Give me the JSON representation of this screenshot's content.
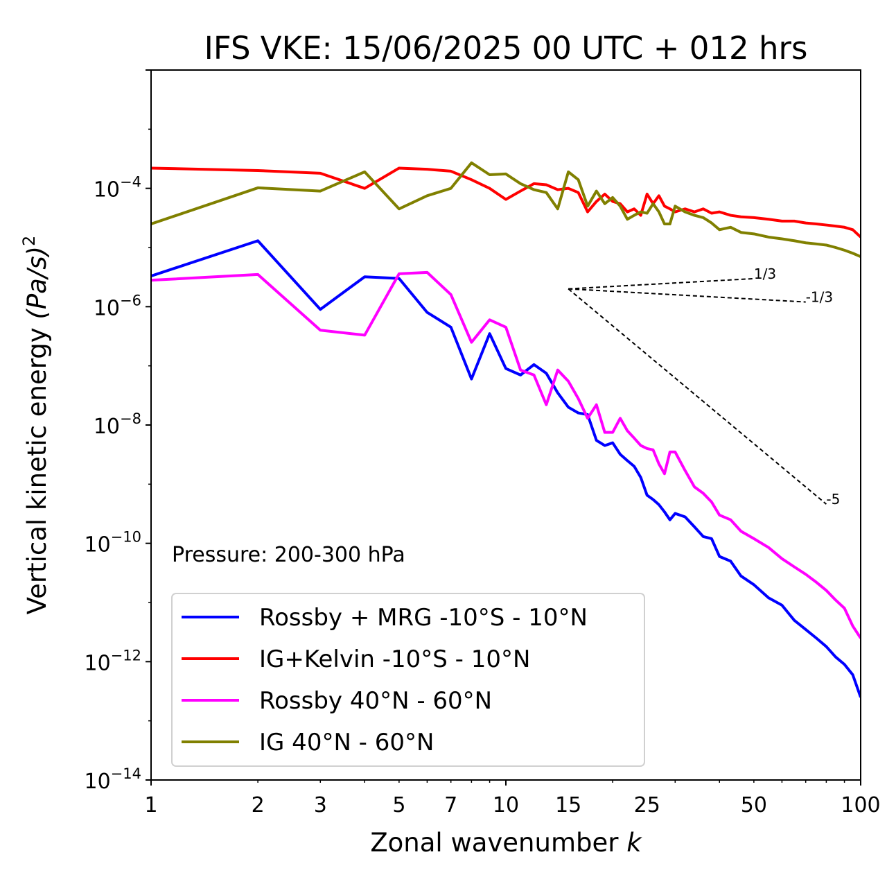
{
  "chart_data": {
    "type": "line",
    "title": "IFS VKE: 15/06/2025 00 UTC + 012 hrs",
    "xlabel": "Zonal wavenumber",
    "xlabel_var": "k",
    "ylabel": "Vertical kinetic energy",
    "ylabel_units": "(Pa/s)",
    "ylabel_units_exp": "2",
    "x_scale": "log",
    "y_scale": "log",
    "xlim": [
      1,
      100
    ],
    "ylim": [
      1e-14,
      0.01
    ],
    "grid": false,
    "legend_position": "lower-left",
    "annotation": "Pressure: 200-300 hPa",
    "x_ticks": [
      {
        "value": 1,
        "label": "1"
      },
      {
        "value": 2,
        "label": "2"
      },
      {
        "value": 3,
        "label": "3"
      },
      {
        "value": 5,
        "label": "5"
      },
      {
        "value": 7,
        "label": "7"
      },
      {
        "value": 10,
        "label": "10"
      },
      {
        "value": 15,
        "label": "15"
      },
      {
        "value": 25,
        "label": "25"
      },
      {
        "value": 50,
        "label": "50"
      },
      {
        "value": 100,
        "label": "100"
      }
    ],
    "y_ticks": [
      {
        "value": 0.0001,
        "base": "10",
        "exp": "−4"
      },
      {
        "value": 1e-06,
        "base": "10",
        "exp": "−6"
      },
      {
        "value": 1e-08,
        "base": "10",
        "exp": "−8"
      },
      {
        "value": 1e-10,
        "base": "10",
        "exp": "−10"
      },
      {
        "value": 1e-12,
        "base": "10",
        "exp": "−12"
      },
      {
        "value": 1e-14,
        "base": "10",
        "exp": "−14"
      }
    ],
    "reference_slopes": [
      {
        "label": "1/3",
        "x": [
          15,
          50
        ],
        "y": [
          2e-06,
          2.98e-06
        ]
      },
      {
        "label": "-1/3",
        "x": [
          15,
          70
        ],
        "y": [
          2e-06,
          1.2e-06
        ]
      },
      {
        "label": "-5",
        "x": [
          15,
          80
        ],
        "y": [
          2e-06,
          4.6e-10
        ]
      }
    ],
    "series": [
      {
        "name": "Rossby + MRG -10°S - 10°N",
        "color": "#0000ff",
        "x": [
          1,
          2,
          3,
          4,
          5,
          6,
          7,
          8,
          9,
          10,
          11,
          12,
          13,
          14,
          15,
          16,
          17,
          18,
          19,
          20,
          21,
          22,
          23,
          24,
          25,
          26,
          27,
          28,
          29,
          30,
          32,
          34,
          36,
          38,
          40,
          43,
          46,
          50,
          55,
          60,
          65,
          70,
          75,
          80,
          85,
          90,
          95,
          100
        ],
        "y": [
          3.3e-06,
          1.3e-05,
          9e-07,
          3.2e-06,
          3e-06,
          8e-07,
          4.5e-07,
          6e-08,
          3.5e-07,
          9e-08,
          7e-08,
          1.05e-07,
          7.5e-08,
          3.5e-08,
          2e-08,
          1.6e-08,
          1.5e-08,
          5.5e-09,
          4.5e-09,
          5e-09,
          3.2e-09,
          2.5e-09,
          2e-09,
          1.3e-09,
          6.5e-10,
          5.5e-10,
          4.5e-10,
          3.4e-10,
          2.5e-10,
          3.2e-10,
          2.8e-10,
          1.9e-10,
          1.3e-10,
          1.2e-10,
          6e-11,
          5e-11,
          2.8e-11,
          2e-11,
          1.2e-11,
          9e-12,
          5e-12,
          3.5e-12,
          2.5e-12,
          1.8e-12,
          1.2e-12,
          9e-13,
          6e-13,
          2.5e-13
        ]
      },
      {
        "name": "IG+Kelvin -10°S - 10°N",
        "color": "#ff0000",
        "x": [
          1,
          2,
          3,
          4,
          5,
          6,
          7,
          8,
          9,
          10,
          11,
          12,
          13,
          14,
          15,
          16,
          17,
          18,
          19,
          20,
          21,
          22,
          23,
          24,
          25,
          26,
          27,
          28,
          29,
          30,
          32,
          34,
          36,
          38,
          40,
          43,
          46,
          50,
          55,
          60,
          65,
          70,
          75,
          80,
          85,
          90,
          95,
          100
        ],
        "y": [
          0.00022,
          0.0002,
          0.00018,
          0.0001,
          0.00022,
          0.00021,
          0.000195,
          0.00014,
          0.0001,
          6.5e-05,
          9e-05,
          0.00012,
          0.000115,
          9.5e-05,
          0.0001,
          8.5e-05,
          4e-05,
          6e-05,
          8e-05,
          6e-05,
          5.5e-05,
          4e-05,
          4.5e-05,
          3.5e-05,
          8e-05,
          5.5e-05,
          7.5e-05,
          5e-05,
          4.5e-05,
          4e-05,
          4.5e-05,
          4e-05,
          4.5e-05,
          3.8e-05,
          4e-05,
          3.5e-05,
          3.3e-05,
          3.2e-05,
          3e-05,
          2.8e-05,
          2.8e-05,
          2.6e-05,
          2.5e-05,
          2.4e-05,
          2.3e-05,
          2.2e-05,
          2e-05,
          1.5e-05
        ]
      },
      {
        "name": "Rossby 40°N - 60°N",
        "color": "#ff00ff",
        "x": [
          1,
          2,
          3,
          4,
          5,
          6,
          7,
          8,
          9,
          10,
          11,
          12,
          13,
          14,
          15,
          16,
          17,
          18,
          19,
          20,
          21,
          22,
          23,
          24,
          25,
          26,
          27,
          28,
          29,
          30,
          32,
          34,
          36,
          38,
          40,
          43,
          46,
          50,
          55,
          60,
          65,
          70,
          75,
          80,
          85,
          90,
          95,
          100
        ],
        "y": [
          2.8e-06,
          3.5e-06,
          4e-07,
          3.3e-07,
          3.6e-06,
          3.8e-06,
          1.6e-06,
          2.5e-07,
          6e-07,
          4.5e-07,
          8.5e-08,
          7e-08,
          2.2e-08,
          8.5e-08,
          5.5e-08,
          2.8e-08,
          1.3e-08,
          2.2e-08,
          7.5e-09,
          7.5e-09,
          1.3e-08,
          8e-09,
          6e-09,
          4.5e-09,
          4e-09,
          3.8e-09,
          2.2e-09,
          1.5e-09,
          3.5e-09,
          3.5e-09,
          1.7e-09,
          9e-10,
          7e-10,
          5e-10,
          3e-10,
          2.5e-10,
          1.6e-10,
          1.2e-10,
          8.5e-11,
          5.5e-11,
          4e-11,
          3e-11,
          2.2e-11,
          1.6e-11,
          1.1e-11,
          8e-12,
          4e-12,
          2.5e-12
        ]
      },
      {
        "name": "IG 40°N - 60°N",
        "color": "#808000",
        "x": [
          1,
          2,
          3,
          4,
          5,
          6,
          7,
          8,
          9,
          10,
          11,
          12,
          13,
          14,
          15,
          16,
          17,
          18,
          19,
          20,
          21,
          22,
          23,
          24,
          25,
          26,
          27,
          28,
          29,
          30,
          32,
          34,
          36,
          38,
          40,
          43,
          46,
          50,
          55,
          60,
          65,
          70,
          75,
          80,
          85,
          90,
          95,
          100
        ],
        "y": [
          2.5e-05,
          0.000102,
          9e-05,
          0.00019,
          4.5e-05,
          7.5e-05,
          0.0001,
          0.00027,
          0.00017,
          0.000175,
          0.00012,
          9.5e-05,
          8.5e-05,
          4.5e-05,
          0.00019,
          0.00014,
          5e-05,
          9e-05,
          5.5e-05,
          7e-05,
          5e-05,
          3e-05,
          3.5e-05,
          4e-05,
          3.8e-05,
          5.5e-05,
          4e-05,
          2.5e-05,
          2.5e-05,
          5e-05,
          4e-05,
          3.5e-05,
          3.2e-05,
          2.6e-05,
          2e-05,
          2.2e-05,
          1.8e-05,
          1.7e-05,
          1.5e-05,
          1.4e-05,
          1.3e-05,
          1.2e-05,
          1.15e-05,
          1.1e-05,
          1e-05,
          9e-06,
          8e-06,
          7e-06
        ]
      }
    ]
  }
}
